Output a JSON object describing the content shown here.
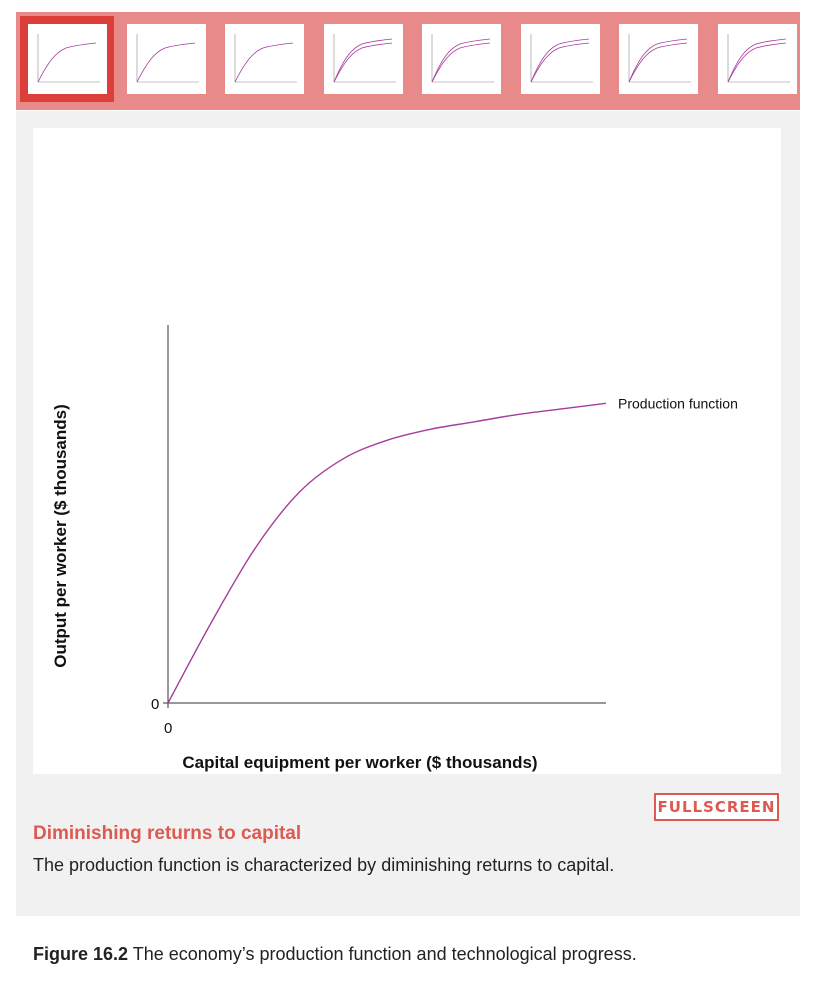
{
  "stepper": {
    "step_count": 8,
    "active_index": 0
  },
  "chart_data": {
    "type": "line",
    "title": "",
    "xlabel": "Capital equipment per worker ($ thousands)",
    "ylabel": "Output per worker ($ thousands)",
    "x_ticks": [
      "0"
    ],
    "y_ticks": [
      "0"
    ],
    "series": [
      {
        "name": "Production function",
        "color": "#a53d9b",
        "shape": "concave, increasing at a diminishing rate from the origin",
        "x": [
          0,
          10,
          20,
          30,
          40,
          50,
          60,
          70,
          80,
          90,
          100
        ],
        "y": [
          0,
          22,
          42,
          57,
          66,
          71,
          74,
          76,
          78,
          79.5,
          81
        ]
      }
    ],
    "grid": false,
    "legend": "label at end of curve"
  },
  "caption": {
    "title": "Diminishing returns to capital",
    "text": "The production function is characterized by diminishing returns to capital."
  },
  "fullscreen_label": "FULLSCREEN",
  "figure": {
    "number": "Figure 16.2",
    "text": " The economy’s production function and technological progress."
  },
  "colors": {
    "accent": "#dc5a52",
    "stepper_bg": "#e98a8a",
    "stepper_active": "#dc3f3a",
    "curve": "#a53d9b"
  }
}
